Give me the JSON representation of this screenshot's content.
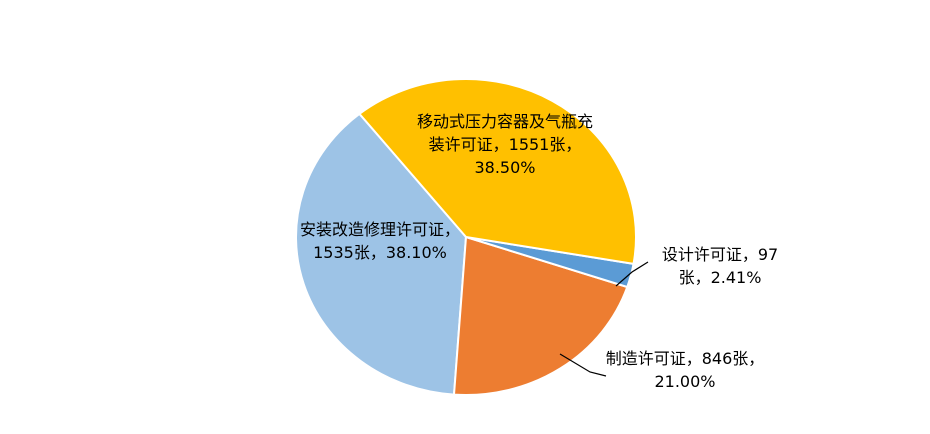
{
  "chart_data": {
    "type": "pie",
    "categories": [
      "移动式压力容器及气瓶充装许可证，",
      "设计许可证，",
      "制造许可证，",
      "安装改造修理许可证，"
    ],
    "values": [
      1551,
      97,
      846,
      1535
    ],
    "value_labels": [
      "1551张，",
      "97张，",
      "846张，",
      "1535张，"
    ],
    "percentages": [
      38.5,
      2.41,
      21.0,
      38.1
    ],
    "percent_labels": [
      "38.50%",
      "2.41%",
      "21.00%",
      "38.10%"
    ],
    "colors": [
      "#FFC000",
      "#5B9BD5",
      "#ED7D31",
      "#9DC3E6"
    ]
  }
}
